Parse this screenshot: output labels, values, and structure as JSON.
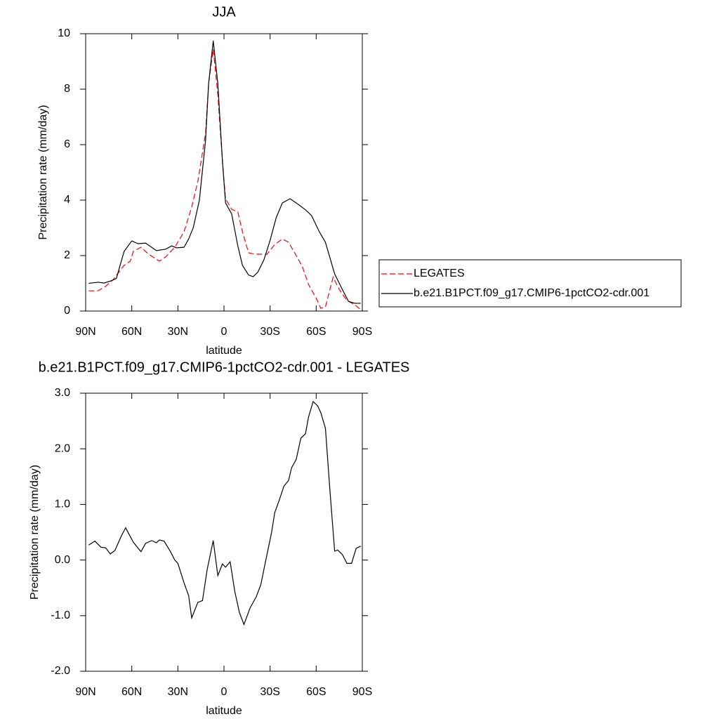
{
  "chart_data": [
    {
      "type": "line",
      "title": "JJA",
      "xlabel": "latitude",
      "ylabel": "Precipitation rate (mm/day)",
      "xlim": [
        90,
        -90
      ],
      "xticks": [
        {
          "value": 90,
          "label": "90N"
        },
        {
          "value": 60,
          "label": "60N"
        },
        {
          "value": 30,
          "label": "30N"
        },
        0,
        {
          "value": -30,
          "label": "30S"
        },
        {
          "value": -60,
          "label": "60S"
        },
        {
          "value": -90,
          "label": "90S"
        }
      ],
      "ylim": [
        0,
        10
      ],
      "yticks": [
        0,
        2,
        4,
        6,
        8,
        10
      ],
      "legend": "right",
      "series": [
        {
          "name": "LEGATES",
          "color": "#ff0000",
          "line_style": "dashed",
          "x": [
            88,
            82,
            77,
            72,
            65,
            61,
            59,
            54,
            49,
            42,
            38,
            32,
            26,
            21,
            17,
            12,
            10,
            7,
            4,
            1,
            -1,
            -5,
            -9,
            -12,
            -16,
            -20,
            -23,
            -28,
            -33,
            -38,
            -42,
            -46,
            -51,
            -55,
            -60,
            -63,
            -66,
            -71,
            -75,
            -80,
            -85,
            -89
          ],
          "values": [
            0.73,
            0.73,
            0.89,
            1.14,
            1.65,
            1.8,
            2.15,
            2.3,
            2.05,
            1.8,
            1.95,
            2.3,
            2.86,
            3.75,
            4.68,
            6.4,
            8.2,
            9.44,
            7.8,
            5.4,
            4.05,
            3.67,
            3.57,
            2.86,
            2.1,
            2.05,
            2.05,
            2.05,
            2.4,
            2.6,
            2.48,
            2.1,
            1.6,
            0.96,
            0.46,
            0.1,
            0.15,
            1.22,
            0.78,
            0.38,
            0.23,
            0.05
          ]
        },
        {
          "name": "b.e21.B1PCT.f09_g17.CMIP6-1pctCO2-cdr.001",
          "color": "#000000",
          "line_style": "solid",
          "x": [
            88,
            82,
            78,
            73,
            70,
            65,
            60,
            56,
            51,
            44,
            38,
            34,
            31,
            26,
            23,
            20,
            16,
            12,
            10,
            7,
            4,
            1,
            -1,
            -5,
            -9,
            -12,
            -16,
            -19,
            -22,
            -26,
            -30,
            -34,
            -38,
            -43,
            -49,
            -53,
            -57,
            -62,
            -66,
            -72,
            -76,
            -81,
            -85,
            -89
          ],
          "values": [
            1.0,
            1.04,
            1.01,
            1.1,
            1.18,
            2.15,
            2.53,
            2.43,
            2.45,
            2.18,
            2.23,
            2.35,
            2.28,
            2.3,
            2.6,
            3.0,
            4.0,
            6.15,
            8.2,
            9.75,
            8.2,
            5.4,
            3.9,
            3.5,
            2.35,
            1.65,
            1.3,
            1.24,
            1.4,
            1.85,
            2.55,
            3.37,
            3.9,
            4.05,
            3.82,
            3.65,
            3.44,
            2.86,
            2.48,
            1.34,
            0.89,
            0.35,
            0.28,
            0.28
          ]
        }
      ]
    },
    {
      "type": "line",
      "title": "b.e21.B1PCT.f09_g17.CMIP6-1pctCO2-cdr.001 - LEGATES",
      "xlabel": "latitude",
      "ylabel": "Precipitation rate (mm/day)",
      "xlim": [
        90,
        -90
      ],
      "xticks": [
        {
          "value": 90,
          "label": "90N"
        },
        {
          "value": 60,
          "label": "60N"
        },
        {
          "value": 30,
          "label": "30N"
        },
        0,
        {
          "value": -30,
          "label": "30S"
        },
        {
          "value": -60,
          "label": "60S"
        },
        {
          "value": -90,
          "label": "90S"
        }
      ],
      "ylim": [
        -2,
        3
      ],
      "yticks": [
        {
          "value": -2,
          "label": "-2.0"
        },
        {
          "value": -1,
          "label": "-1.0"
        },
        {
          "value": 0,
          "label": "0.0"
        },
        {
          "value": 1,
          "label": "1.0"
        },
        {
          "value": 2,
          "label": "2.0"
        },
        {
          "value": 3,
          "label": "3.0"
        }
      ],
      "series": [
        {
          "color": "#000000",
          "line_style": "solid",
          "x": [
            88,
            84,
            80,
            77,
            74,
            71,
            67,
            64,
            59,
            54,
            51,
            47,
            44,
            42,
            39,
            35,
            32,
            30,
            26,
            23,
            21,
            17,
            14,
            11,
            7,
            4,
            1,
            -1,
            -4,
            -7,
            -10,
            -13,
            -17,
            -21,
            -24,
            -27,
            -31,
            -33,
            -36,
            -39,
            -42,
            -44,
            -47,
            -50,
            -53,
            -55,
            -58,
            -61,
            -63,
            -66,
            -69,
            -72,
            -74,
            -77,
            -80,
            -83,
            -86,
            -89
          ],
          "values": [
            0.27,
            0.34,
            0.23,
            0.22,
            0.11,
            0.17,
            0.42,
            0.58,
            0.32,
            0.15,
            0.3,
            0.35,
            0.31,
            0.36,
            0.34,
            0.16,
            0.0,
            -0.06,
            -0.41,
            -0.64,
            -1.04,
            -0.76,
            -0.73,
            -0.18,
            0.35,
            -0.28,
            -0.07,
            -0.13,
            -0.03,
            -0.56,
            -0.94,
            -1.16,
            -0.86,
            -0.66,
            -0.44,
            -0.03,
            0.5,
            0.85,
            1.08,
            1.33,
            1.43,
            1.66,
            1.81,
            2.19,
            2.27,
            2.57,
            2.85,
            2.77,
            2.65,
            2.37,
            1.23,
            0.16,
            0.18,
            0.1,
            -0.06,
            -0.06,
            0.21,
            0.25
          ]
        }
      ]
    }
  ]
}
